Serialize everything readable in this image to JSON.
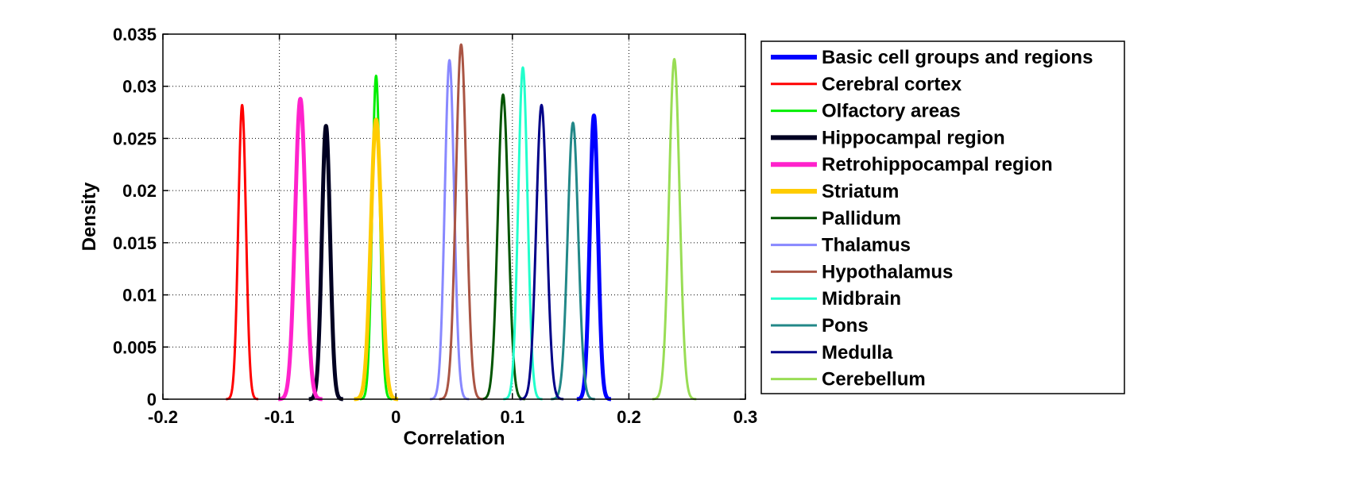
{
  "chart_data": {
    "type": "line",
    "title": "",
    "xlabel": "Correlation",
    "ylabel": "Density",
    "xlim": [
      -0.2,
      0.3
    ],
    "ylim": [
      0,
      0.035
    ],
    "xticks": [
      -0.2,
      -0.1,
      0,
      0.1,
      0.2,
      0.3
    ],
    "xtick_labels": [
      "-0.2",
      "-0.1",
      "0",
      "0.1",
      "0.2",
      "0.3"
    ],
    "yticks": [
      0,
      0.005,
      0.01,
      0.015,
      0.02,
      0.025,
      0.03,
      0.035
    ],
    "ytick_labels": [
      "0",
      "0.005",
      "0.01",
      "0.015",
      "0.02",
      "0.025",
      "0.03",
      "0.035"
    ],
    "grid": true,
    "legend_position": "outside-right",
    "series": [
      {
        "name": "Basic cell groups and regions",
        "color": "#0000ff",
        "width": "thick",
        "mean": 0.17,
        "sd": 0.0035,
        "peak": 0.0272
      },
      {
        "name": "Cerebral cortex",
        "color": "#ff0000",
        "width": "thin",
        "mean": -0.132,
        "sd": 0.0033,
        "peak": 0.0282
      },
      {
        "name": "Olfactory areas",
        "color": "#00ee00",
        "width": "thin",
        "mean": -0.017,
        "sd": 0.0033,
        "peak": 0.031
      },
      {
        "name": "Hippocampal region",
        "color": "#000022",
        "width": "thick",
        "mean": -0.06,
        "sd": 0.0035,
        "peak": 0.0262
      },
      {
        "name": "Retrohippocampal region",
        "color": "#ff22cc",
        "width": "thick",
        "mean": -0.082,
        "sd": 0.0045,
        "peak": 0.0288
      },
      {
        "name": "Striatum",
        "color": "#ffcc00",
        "width": "thick",
        "mean": -0.017,
        "sd": 0.0045,
        "peak": 0.0268
      },
      {
        "name": "Pallidum",
        "color": "#005500",
        "width": "thin",
        "mean": 0.092,
        "sd": 0.0045,
        "peak": 0.0292
      },
      {
        "name": "Thalamus",
        "color": "#8888ff",
        "width": "thin",
        "mean": 0.046,
        "sd": 0.004,
        "peak": 0.0325
      },
      {
        "name": "Hypothalamus",
        "color": "#aa5544",
        "width": "thin",
        "mean": 0.056,
        "sd": 0.0045,
        "peak": 0.034
      },
      {
        "name": "Midbrain",
        "color": "#22ffcc",
        "width": "thin",
        "mean": 0.109,
        "sd": 0.004,
        "peak": 0.0318
      },
      {
        "name": "Pons",
        "color": "#228888",
        "width": "thin",
        "mean": 0.152,
        "sd": 0.0045,
        "peak": 0.0265
      },
      {
        "name": "Medulla",
        "color": "#000088",
        "width": "thin",
        "mean": 0.125,
        "sd": 0.0045,
        "peak": 0.0282
      },
      {
        "name": "Cerebellum",
        "color": "#99dd55",
        "width": "thin",
        "mean": 0.239,
        "sd": 0.0045,
        "peak": 0.0326
      }
    ]
  }
}
